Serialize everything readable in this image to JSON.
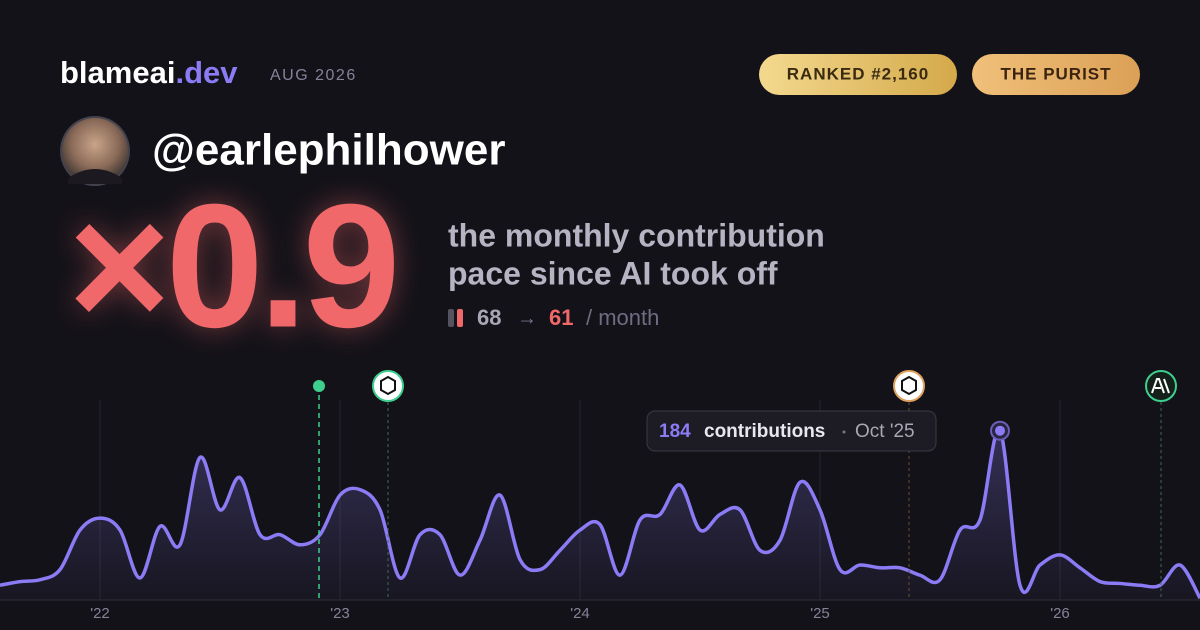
{
  "brand": {
    "name": "blameai",
    "tld": ".dev",
    "period": "AUG 2026"
  },
  "badges": {
    "rank": "RANKED #2,160",
    "persona": "THE PURIST"
  },
  "user": {
    "handle": "@earlephilhower"
  },
  "headline": {
    "multiplier": "×0.9",
    "lines": [
      "the monthly contribution",
      "pace since AI took off"
    ],
    "before": 68,
    "arrow": "→",
    "after": 61,
    "unit": "/ month"
  },
  "chart_data": {
    "type": "line",
    "categories": [
      null,
      null,
      null,
      null,
      null,
      "'22",
      null,
      null,
      null,
      null,
      null,
      null,
      null,
      null,
      null,
      null,
      null,
      "'23",
      null,
      null,
      null,
      null,
      null,
      null,
      null,
      null,
      null,
      null,
      null,
      "'24",
      null,
      null,
      null,
      null,
      null,
      null,
      null,
      null,
      null,
      null,
      null,
      "'25",
      null,
      null,
      null,
      null,
      null,
      null,
      null,
      null,
      null,
      null,
      null,
      "'26",
      null,
      null,
      null,
      null,
      null,
      null,
      null
    ],
    "series": [
      {
        "name": "contributions",
        "color": "#8b7cf6",
        "values": [
          16,
          20,
          22,
          33,
          76,
          89,
          76,
          24,
          80,
          60,
          155,
          98,
          133,
          71,
          71,
          60,
          71,
          114,
          120,
          98,
          24,
          71,
          71,
          27,
          65,
          114,
          44,
          33,
          54,
          76,
          82,
          27,
          87,
          93,
          125,
          76,
          93,
          98,
          54,
          65,
          128,
          98,
          33,
          38,
          35,
          35,
          27,
          22,
          76,
          87,
          184,
          16,
          38,
          49,
          35,
          20,
          18,
          16,
          16,
          38,
          2
        ]
      }
    ],
    "ylim": [
      0,
      200
    ],
    "tooltip": {
      "unit": "contributions",
      "date": "Oct '25"
    }
  }
}
